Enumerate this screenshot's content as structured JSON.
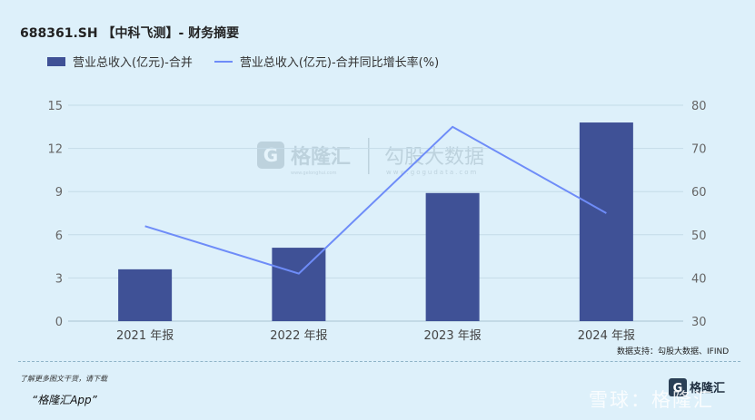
{
  "header": {
    "title": "688361.SH 【中科飞测】- 财务摘要"
  },
  "legend": {
    "bar_label": "营业总收入(亿元)-合并",
    "line_label": "营业总收入(亿元)-合并同比增长率(%)"
  },
  "colors": {
    "bar": "#3f5196",
    "line": "#6e8cf8",
    "grid": "#c4dbe8",
    "axis_text": "#666666"
  },
  "chart_data": {
    "type": "bar+line",
    "categories": [
      "2021 年报",
      "2022 年报",
      "2023 年报",
      "2024 年报"
    ],
    "series": [
      {
        "name": "营业总收入(亿元)-合并",
        "type": "bar",
        "axis": "left",
        "values": [
          3.6,
          5.1,
          8.9,
          13.8
        ]
      },
      {
        "name": "营业总收入(亿元)-合并同比增长率(%)",
        "type": "line",
        "axis": "right",
        "values": [
          52,
          41,
          75,
          55
        ]
      }
    ],
    "y_left": {
      "ylim": [
        0,
        15
      ],
      "ticks": [
        "0",
        "3",
        "6",
        "9",
        "12",
        "15"
      ]
    },
    "y_right": {
      "ylim": [
        30,
        80
      ],
      "ticks": [
        "30",
        "40",
        "50",
        "60",
        "70",
        "80"
      ]
    },
    "grid": true,
    "legend_position": "top-left"
  },
  "watermark": {
    "brand": "格隆汇",
    "brand_url": "www.gelonghui.com",
    "partner": "勾股大数据",
    "partner_url": "www.gogudata.com"
  },
  "source": "数据支持：勾股大数据、IFIND",
  "promo": {
    "line1": "了解更多图文干货，请下载",
    "app": "“格隆汇App”"
  },
  "logo": {
    "text": "格隆汇"
  },
  "xueqiu": "雪球：格隆汇"
}
